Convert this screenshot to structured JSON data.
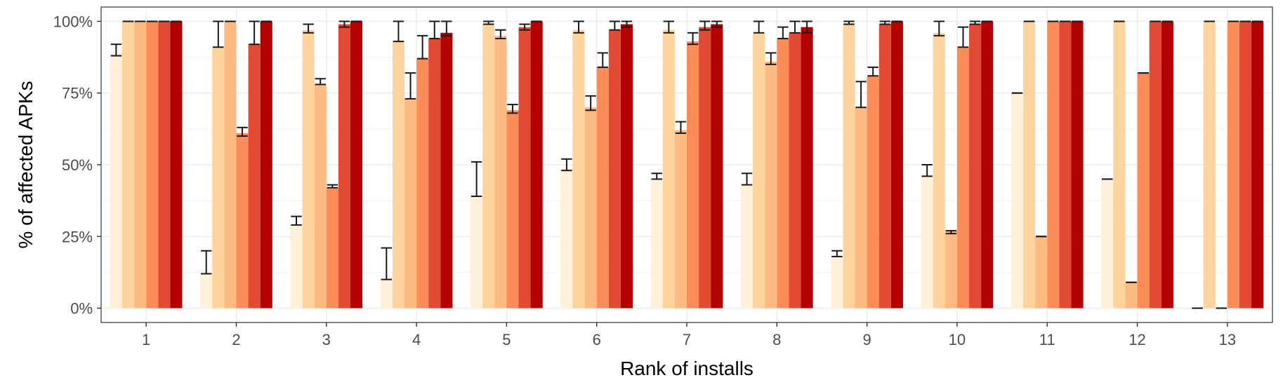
{
  "chart_data": {
    "type": "bar",
    "xlabel": "Rank of installs",
    "ylabel": "% of affected APKs",
    "ylim": [
      0,
      100
    ],
    "yticks": [
      "0%",
      "25%",
      "50%",
      "75%",
      "100%"
    ],
    "grid": true,
    "categories": [
      "1",
      "2",
      "3",
      "4",
      "5",
      "6",
      "7",
      "8",
      "9",
      "10",
      "11",
      "12",
      "13"
    ],
    "series_colors": [
      "#FEF0D9",
      "#FDD49E",
      "#FDBB84",
      "#FC8D59",
      "#E34A33",
      "#B30000"
    ],
    "series": [
      {
        "values": [
          89,
          12,
          29,
          10,
          39,
          49,
          45,
          43,
          18,
          46,
          75,
          45,
          0
        ],
        "error": [
          [
            88,
            92
          ],
          [
            12,
            20
          ],
          [
            29,
            32
          ],
          [
            10,
            21
          ],
          [
            39,
            51
          ],
          [
            48,
            52
          ],
          [
            45,
            47
          ],
          [
            43,
            47
          ],
          [
            18,
            20
          ],
          [
            46,
            50
          ],
          [
            75,
            75
          ],
          [
            45,
            45
          ],
          [
            0,
            0
          ]
        ]
      },
      {
        "values": [
          100,
          91,
          97,
          93,
          99,
          97,
          97,
          96,
          99,
          96,
          100,
          100,
          100
        ],
        "error": [
          [
            100,
            100
          ],
          [
            91,
            100
          ],
          [
            96,
            99
          ],
          [
            93,
            100
          ],
          [
            99,
            100
          ],
          [
            96,
            100
          ],
          [
            96,
            100
          ],
          [
            96,
            100
          ],
          [
            99,
            100
          ],
          [
            95,
            100
          ],
          [
            100,
            100
          ],
          [
            100,
            100
          ],
          [
            100,
            100
          ]
        ]
      },
      {
        "values": [
          100,
          100,
          78,
          73,
          95,
          70,
          62,
          86,
          70,
          27,
          25,
          9,
          0
        ],
        "error": [
          [
            100,
            100
          ],
          [
            100,
            100
          ],
          [
            78,
            80
          ],
          [
            73,
            82
          ],
          [
            94,
            97
          ],
          [
            69,
            74
          ],
          [
            61,
            65
          ],
          [
            85,
            89
          ],
          [
            70,
            79
          ],
          [
            26,
            27
          ],
          [
            25,
            25
          ],
          [
            9,
            9
          ],
          [
            0,
            0
          ]
        ]
      },
      {
        "values": [
          100,
          61,
          42,
          87,
          69,
          84,
          93,
          94,
          81,
          91,
          100,
          82,
          100
        ],
        "error": [
          [
            100,
            100
          ],
          [
            60,
            63
          ],
          [
            42,
            43
          ],
          [
            87,
            95
          ],
          [
            68,
            71
          ],
          [
            84,
            89
          ],
          [
            92,
            96
          ],
          [
            94,
            98
          ],
          [
            81,
            84
          ],
          [
            91,
            98
          ],
          [
            100,
            100
          ],
          [
            82,
            82
          ],
          [
            100,
            100
          ]
        ]
      },
      {
        "values": [
          100,
          92,
          99,
          94,
          98,
          97,
          98,
          96,
          99,
          99,
          100,
          100,
          100
        ],
        "error": [
          [
            100,
            100
          ],
          [
            92,
            100
          ],
          [
            98,
            100
          ],
          [
            94,
            100
          ],
          [
            97,
            99
          ],
          [
            97,
            100
          ],
          [
            97,
            100
          ],
          [
            96,
            100
          ],
          [
            99,
            100
          ],
          [
            99,
            100
          ],
          [
            100,
            100
          ],
          [
            100,
            100
          ],
          [
            100,
            100
          ]
        ]
      },
      {
        "values": [
          100,
          100,
          100,
          96,
          100,
          99,
          99,
          98,
          100,
          100,
          100,
          100,
          100
        ],
        "error": [
          [
            100,
            100
          ],
          [
            100,
            100
          ],
          [
            100,
            100
          ],
          [
            95,
            100
          ],
          [
            100,
            100
          ],
          [
            98,
            100
          ],
          [
            98,
            100
          ],
          [
            96,
            100
          ],
          [
            100,
            100
          ],
          [
            100,
            100
          ],
          [
            100,
            100
          ],
          [
            100,
            100
          ],
          [
            100,
            100
          ]
        ]
      }
    ]
  }
}
